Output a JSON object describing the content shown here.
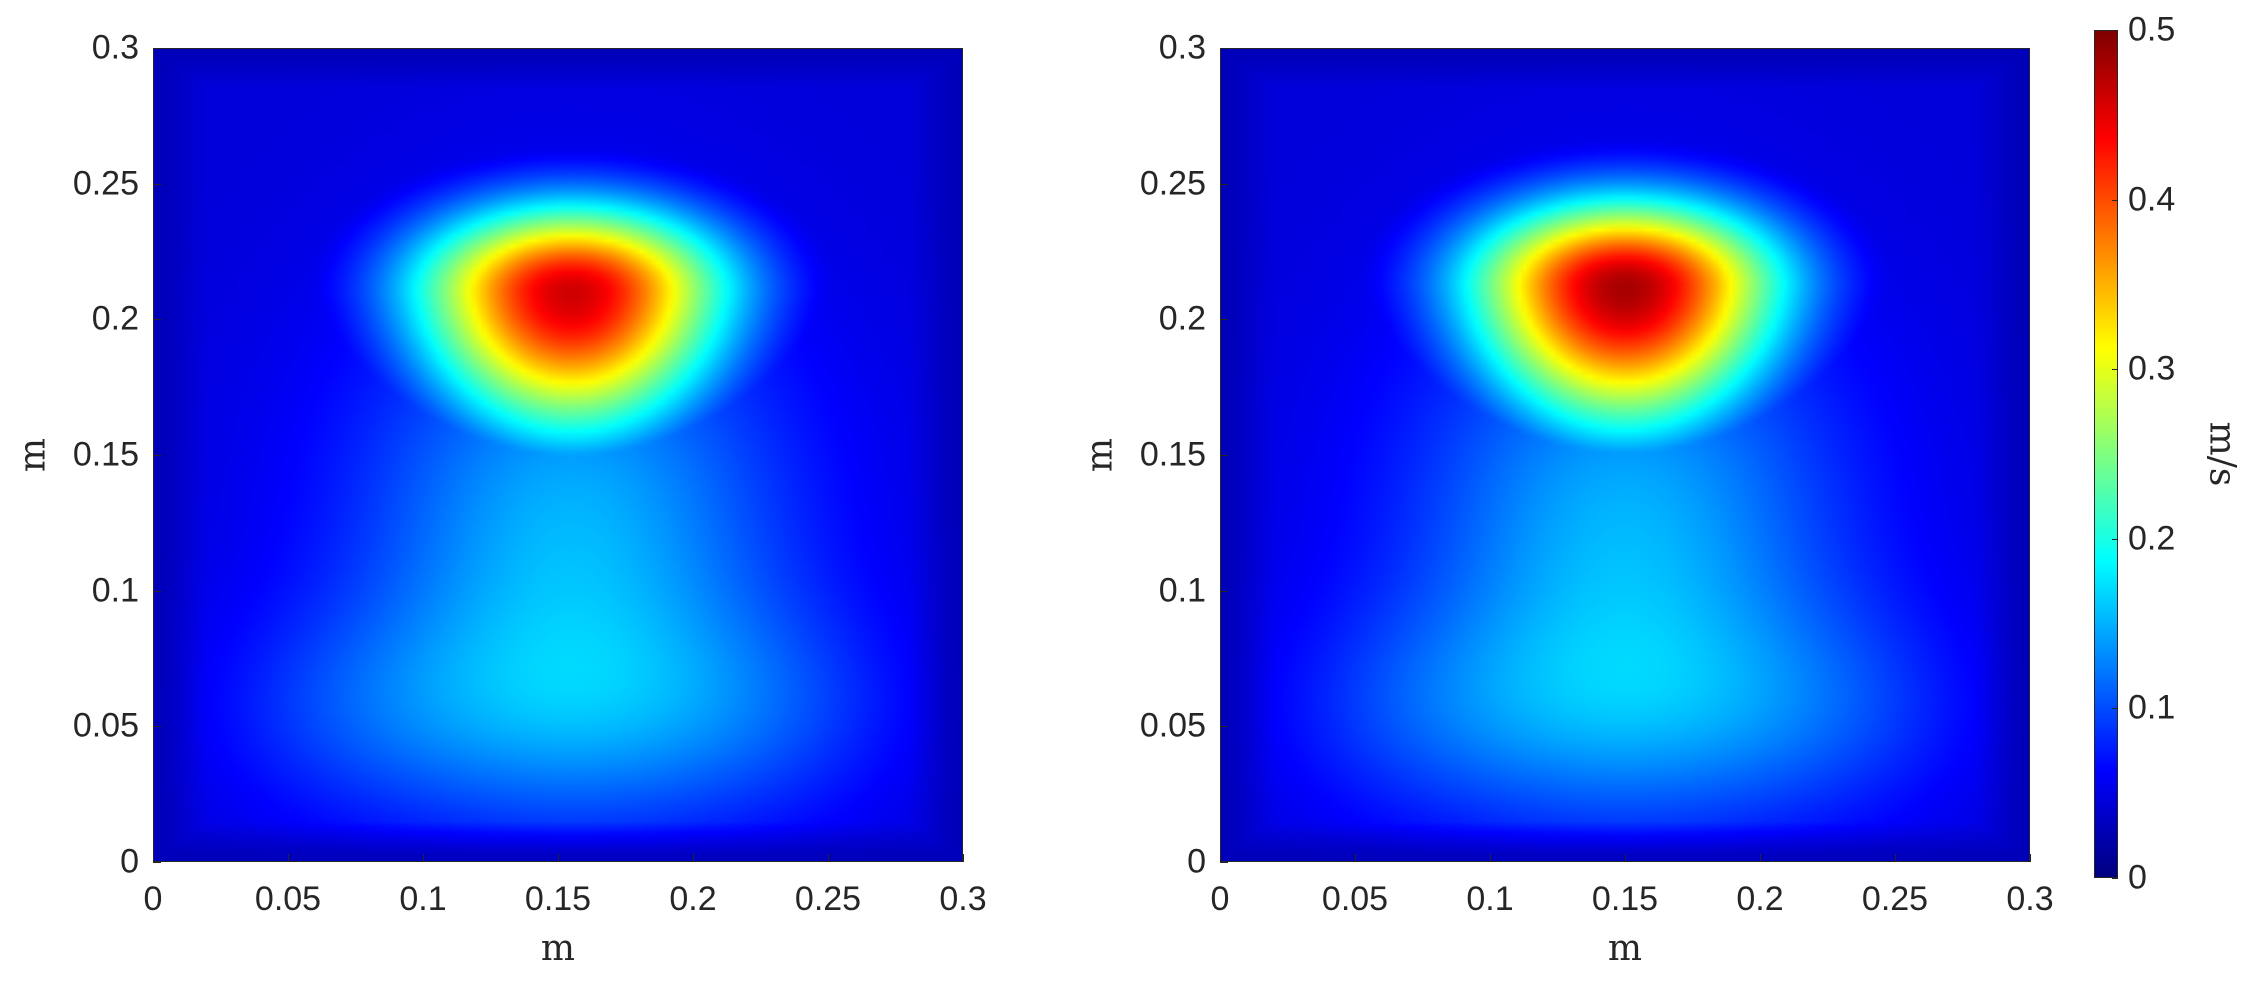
{
  "chart_data": [
    {
      "type": "heatmap",
      "xlabel": "m",
      "ylabel": "m",
      "xlim": [
        0,
        0.3
      ],
      "ylim": [
        0,
        0.3
      ],
      "x_ticks": [
        "0",
        "0.05",
        "0.1",
        "0.15",
        "0.2",
        "0.25",
        "0.3"
      ],
      "y_ticks": [
        "0",
        "0.05",
        "0.1",
        "0.15",
        "0.2",
        "0.25",
        "0.3"
      ],
      "peak": {
        "x": 0.155,
        "y": 0.21,
        "value": 0.45
      },
      "colormap": "jet"
    },
    {
      "type": "heatmap",
      "xlabel": "m",
      "ylabel": "m",
      "xlim": [
        0,
        0.3
      ],
      "ylim": [
        0,
        0.3
      ],
      "x_ticks": [
        "0",
        "0.05",
        "0.1",
        "0.15",
        "0.2",
        "0.25",
        "0.3"
      ],
      "y_ticks": [
        "0",
        "0.05",
        "0.1",
        "0.15",
        "0.2",
        "0.25",
        "0.3"
      ],
      "peak": {
        "x": 0.15,
        "y": 0.212,
        "value": 0.47
      },
      "colormap": "jet"
    }
  ],
  "colorbar": {
    "label": "m/s",
    "range": [
      0,
      0.5
    ],
    "ticks": [
      "0",
      "0.1",
      "0.2",
      "0.3",
      "0.4",
      "0.5"
    ],
    "colormap": "jet"
  }
}
